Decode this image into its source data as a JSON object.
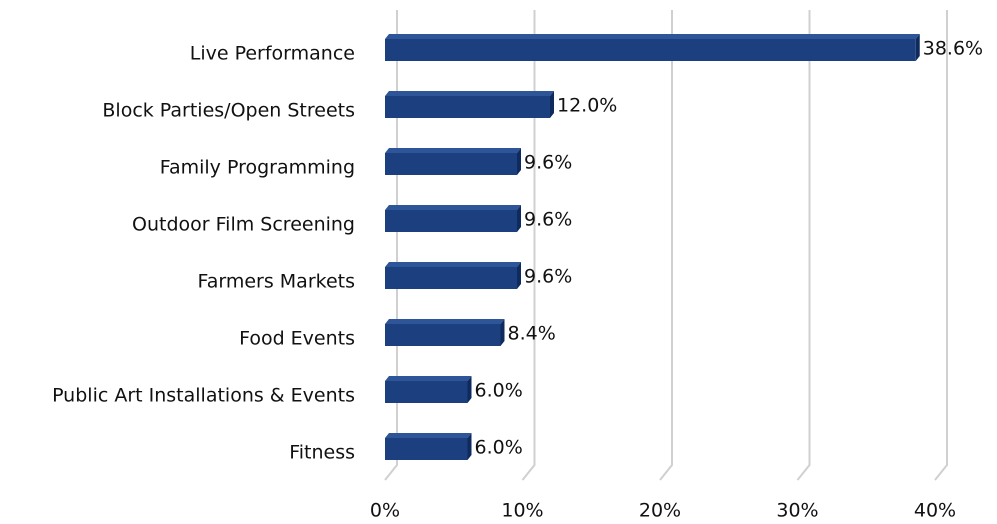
{
  "chart_data": {
    "type": "hbar",
    "categories": [
      "Live Performance",
      "Block Parties/Open Streets",
      "Family Programming",
      "Outdoor Film Screening",
      "Farmers Markets",
      "Food Events",
      "Public Art Installations & Events",
      "Fitness"
    ],
    "values": [
      38.6,
      12.0,
      9.6,
      9.6,
      9.6,
      8.4,
      6.0,
      6.0
    ],
    "value_labels": [
      "38.6%",
      "12.0%",
      "9.6%",
      "9.6%",
      "9.6%",
      "8.4%",
      "6.0%",
      "6.0%"
    ],
    "color": "#1b3f7f",
    "xlim": [
      0,
      40
    ],
    "xticks": [
      {
        "value": 0,
        "label": "0%"
      },
      {
        "value": 10,
        "label": "10%"
      },
      {
        "value": 20,
        "label": "20%"
      },
      {
        "value": 30,
        "label": "30%"
      },
      {
        "value": 40,
        "label": "40%"
      }
    ],
    "grid": true
  }
}
